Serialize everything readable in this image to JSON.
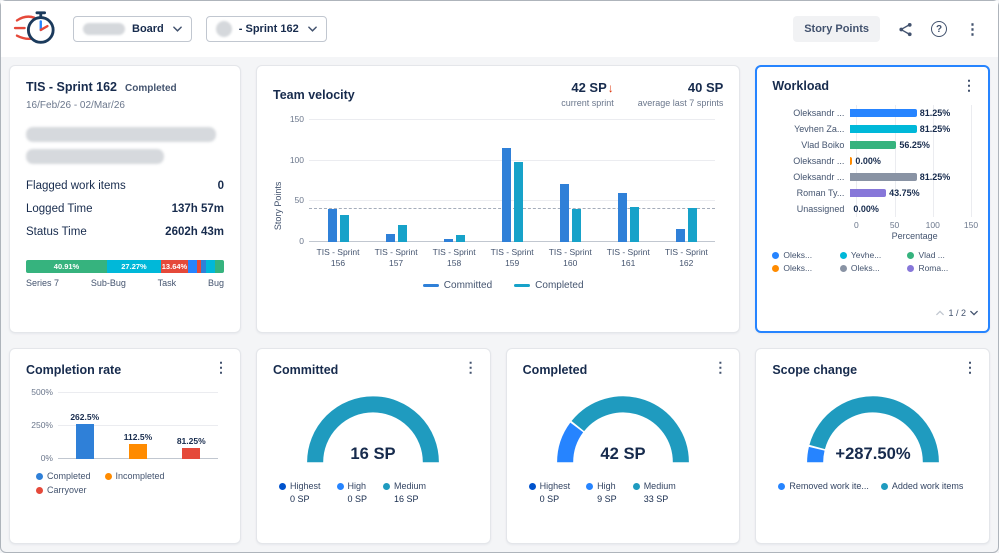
{
  "topbar": {
    "board_dropdown": {
      "label": "Board"
    },
    "sprint_dropdown": {
      "label": "- Sprint 162"
    },
    "story_points_button": "Story Points"
  },
  "sprint_card": {
    "title": "TIS - Sprint 162",
    "status": "Completed",
    "dates": "16/Feb/26 - 02/Mar/26",
    "stats": [
      {
        "label": "Flagged work items",
        "value": "0"
      },
      {
        "label": "Logged Time",
        "value": "137h 57m"
      },
      {
        "label": "Status Time",
        "value": "2602h 43m"
      }
    ]
  },
  "velocity_card": {
    "title": "Team velocity",
    "current_value": "42 SP",
    "current_arrow": "↓",
    "current_caption": "current sprint",
    "average_value": "40 SP",
    "average_caption": "average last 7 sprints"
  },
  "workload_card": {
    "title": "Workload",
    "pagination": "1 / 2"
  },
  "completion_card": {
    "title": "Completion rate"
  },
  "committed_card": {
    "title": "Committed"
  },
  "completed_card": {
    "title": "Completed"
  },
  "scope_card": {
    "title": "Scope change"
  },
  "menu_icon": "⋮",
  "help_icon": "?",
  "chart_data": [
    {
      "id": "issue_type_distribution",
      "type": "stacked_bar",
      "segments": [
        {
          "label": "40.91%",
          "pct": 40.91,
          "color": "#36B37E"
        },
        {
          "label": "27.27%",
          "pct": 27.27,
          "color": "#00B8D9"
        },
        {
          "label": "13.64%",
          "pct": 13.64,
          "color": "#E5493A"
        },
        {
          "label": "",
          "pct": 4.55,
          "color": "#2684FF"
        },
        {
          "label": "",
          "pct": 2.27,
          "color": "#E5493A"
        },
        {
          "label": "",
          "pct": 2.27,
          "color": "#2F80D8"
        },
        {
          "label": "",
          "pct": 4.55,
          "color": "#00B8D9"
        },
        {
          "label": "",
          "pct": 4.56,
          "color": "#36B37E"
        }
      ],
      "legend": [
        "Series 7",
        "Sub-Bug",
        "Task",
        "Bug"
      ]
    },
    {
      "id": "team_velocity",
      "type": "bar",
      "title": "Team velocity",
      "categories": [
        "TIS - Sprint 156",
        "TIS - Sprint 157",
        "TIS - Sprint 158",
        "TIS - Sprint 159",
        "TIS - Sprint 160",
        "TIS - Sprint 161",
        "TIS - Sprint 162"
      ],
      "series": [
        {
          "name": "Committed",
          "color": "#2F80D8",
          "values": [
            40,
            10,
            4,
            116,
            71,
            60,
            16
          ]
        },
        {
          "name": "Completed",
          "color": "#17A2C9",
          "values": [
            33,
            21,
            9,
            98,
            40,
            43,
            42
          ]
        }
      ],
      "ylabel": "Story Points",
      "ylim": [
        0,
        150
      ],
      "yticks": [
        0,
        50,
        100,
        150
      ],
      "average_line": 40,
      "legend_position": "bottom"
    },
    {
      "id": "workload",
      "type": "bar_horizontal",
      "xlabel": "Percentage",
      "xlim": [
        0,
        150
      ],
      "xticks": [
        0,
        50,
        100,
        150
      ],
      "rows": [
        {
          "name": "Oleksandr ...",
          "value": 81.25,
          "label": "81.25%",
          "color": "#2684FF"
        },
        {
          "name": "Yevhen Za...",
          "value": 81.25,
          "label": "81.25%",
          "color": "#00B8D9"
        },
        {
          "name": "Vlad Boiko",
          "value": 56.25,
          "label": "56.25%",
          "color": "#36B37E"
        },
        {
          "name": "Oleksandr ...",
          "value": 0,
          "label": "0.00%",
          "color": "#FF8B00"
        },
        {
          "name": "Oleksandr ...",
          "value": 81.25,
          "label": "81.25%",
          "color": "#8993A4"
        },
        {
          "name": "Roman Ty...",
          "value": 43.75,
          "label": "43.75%",
          "color": "#8777D9"
        },
        {
          "name": "Unassigned",
          "value": 0,
          "label": "0.00%",
          "color": null
        }
      ],
      "legend": [
        {
          "label": "Oleks...",
          "color": "#2684FF"
        },
        {
          "label": "Yevhe...",
          "color": "#00B8D9"
        },
        {
          "label": "Vlad ...",
          "color": "#36B37E"
        },
        {
          "label": "Oleks...",
          "color": "#FF8B00"
        },
        {
          "label": "Oleks...",
          "color": "#8993A4"
        },
        {
          "label": "Roma...",
          "color": "#8777D9"
        }
      ],
      "pagination": "1 / 2"
    },
    {
      "id": "completion_rate",
      "type": "bar",
      "categories": [
        "Completed",
        "Incompleted",
        "Carryover"
      ],
      "values": [
        262.5,
        112.5,
        81.25
      ],
      "labels": [
        "262.5%",
        "112.5%",
        "81.25%"
      ],
      "colors": [
        "#2F80D8",
        "#FF8B00",
        "#E5493A"
      ],
      "ylim": [
        0,
        500
      ],
      "yticks": [
        0,
        250,
        500
      ],
      "ytick_labels": [
        "0%",
        "250%",
        "500%"
      ]
    },
    {
      "id": "committed_gauge",
      "type": "gauge",
      "value": "16 SP",
      "segments": [
        {
          "color": "#1F9BBF",
          "frac": 1
        }
      ],
      "legend": [
        {
          "label": "Highest",
          "value": "0 SP",
          "color": "#0052CC"
        },
        {
          "label": "High",
          "value": "0 SP",
          "color": "#2684FF"
        },
        {
          "label": "Medium",
          "value": "16 SP",
          "color": "#1F9BBF"
        }
      ]
    },
    {
      "id": "completed_gauge",
      "type": "gauge",
      "value": "42 SP",
      "segments": [
        {
          "color": "#2684FF",
          "frac": 0.21
        },
        {
          "color": "#1F9BBF",
          "frac": 0.79
        }
      ],
      "legend": [
        {
          "label": "Highest",
          "value": "0 SP",
          "color": "#0052CC"
        },
        {
          "label": "High",
          "value": "9 SP",
          "color": "#2684FF"
        },
        {
          "label": "Medium",
          "value": "33 SP",
          "color": "#1F9BBF"
        }
      ]
    },
    {
      "id": "scope_change_gauge",
      "type": "gauge",
      "value": "+287.50%",
      "segments": [
        {
          "color": "#2684FF",
          "frac": 0.08
        },
        {
          "color": "#1F9BBF",
          "frac": 0.92
        }
      ],
      "legend": [
        {
          "label": "Removed work ite...",
          "color": "#2684FF"
        },
        {
          "label": "Added work items",
          "color": "#1F9BBF"
        }
      ]
    }
  ]
}
